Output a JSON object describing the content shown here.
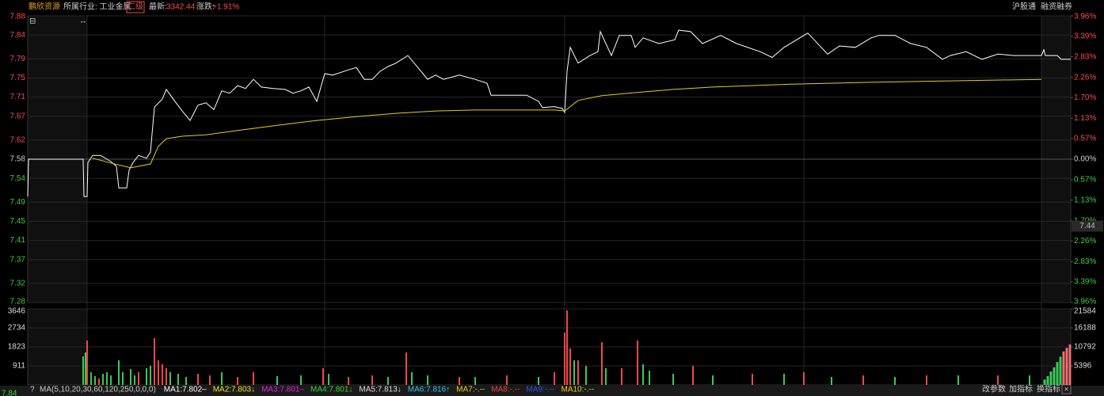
{
  "header": {
    "stock_name": "鹏欣资源",
    "industry": "所属行业: 工业金属",
    "level": "二级",
    "latest_label": "最新:",
    "latest_value": "3342.44",
    "change_label": "涨跌:",
    "change_value": "+1.91%",
    "right_links": [
      "沪股通",
      "融资融券"
    ]
  },
  "chart_data": [
    {
      "type": "line",
      "xlim": [
        0,
        263.4
      ],
      "ylim": [
        7.28,
        7.88
      ],
      "yticks": [
        7.88,
        7.84,
        7.79,
        7.75,
        7.71,
        7.67,
        7.62,
        7.58,
        7.54,
        7.49,
        7.45,
        7.41,
        7.37,
        7.32,
        7.28
      ],
      "y2lim": [
        -3.96,
        3.96
      ],
      "y2ticks": [
        {
          "value": 3.96,
          "label": "3.96%"
        },
        {
          "value": 3.39,
          "label": "3.39%"
        },
        {
          "value": 2.83,
          "label": "2.83%"
        },
        {
          "value": 2.26,
          "label": "2.26%"
        },
        {
          "value": 1.7,
          "label": "1.70%"
        },
        {
          "value": 1.13,
          "label": "1.13%"
        },
        {
          "value": 0.57,
          "label": "0.57%"
        },
        {
          "value": 0,
          "label": "0.00%"
        },
        {
          "value": -0.57,
          "label": "0.57%"
        },
        {
          "value": -1.13,
          "label": "1.13%"
        },
        {
          "value": -1.7,
          "label": "1.70%"
        },
        {
          "value": -2.26,
          "label": "2.26%"
        },
        {
          "value": -2.83,
          "label": "2.83%"
        },
        {
          "value": -3.39,
          "label": "3.39%"
        },
        {
          "value": -3.96,
          "label": "3.96%"
        }
      ],
      "up_color": "#ff4a4a",
      "down_color": "#3ad23a",
      "flat_color": "#cccccc",
      "grid": true,
      "marker_value": 7.44,
      "series": [
        {
          "color": "#ffffff",
          "x": [
            0,
            0.2,
            14,
            14.2,
            15,
            15.2,
            16.4,
            18.4,
            21,
            22.4,
            23,
            25,
            25.6,
            26.6,
            28,
            30,
            31,
            32,
            34,
            35,
            37,
            39,
            41,
            43,
            45,
            47,
            49,
            51,
            53,
            55,
            57,
            59,
            62,
            65,
            67,
            69,
            71,
            73,
            75,
            77,
            81,
            83,
            85,
            87,
            89,
            91,
            93,
            96,
            98,
            101,
            103,
            105,
            109,
            113,
            116,
            117,
            123,
            126,
            129,
            130,
            133,
            135,
            135.6,
            136.2,
            137,
            139,
            142,
            144,
            144.6,
            147.4,
            149.4,
            152.4,
            153.4,
            155.4,
            159.4,
            163.4,
            164.4,
            167.4,
            170.4,
            175,
            179,
            185,
            188,
            191,
            197,
            202,
            205,
            209,
            213,
            215,
            219,
            223,
            227,
            231,
            233,
            237,
            241,
            245,
            249,
            253,
            256,
            256.6,
            257,
            260,
            261,
            263.4
          ],
          "values": [
            7.502,
            7.58,
            7.58,
            7.502,
            7.502,
            7.573,
            7.588,
            7.588,
            7.575,
            7.565,
            7.52,
            7.52,
            7.557,
            7.573,
            7.588,
            7.582,
            7.595,
            7.689,
            7.706,
            7.726,
            7.703,
            7.681,
            7.661,
            7.693,
            7.698,
            7.684,
            7.723,
            7.718,
            7.734,
            7.728,
            7.747,
            7.731,
            7.728,
            7.726,
            7.718,
            7.723,
            7.731,
            7.701,
            7.759,
            7.756,
            7.767,
            7.772,
            7.747,
            7.747,
            7.764,
            7.774,
            7.781,
            7.797,
            7.777,
            7.747,
            7.756,
            7.747,
            7.756,
            7.747,
            7.739,
            7.714,
            7.714,
            7.714,
            7.701,
            7.688,
            7.69,
            7.686,
            7.678,
            7.764,
            7.814,
            7.781,
            7.797,
            7.805,
            7.847,
            7.797,
            7.839,
            7.839,
            7.814,
            7.834,
            7.822,
            7.83,
            7.85,
            7.847,
            7.822,
            7.839,
            7.822,
            7.805,
            7.793,
            7.814,
            7.844,
            7.8,
            7.817,
            7.814,
            7.834,
            7.839,
            7.839,
            7.822,
            7.814,
            7.789,
            7.797,
            7.805,
            7.789,
            7.8,
            7.797,
            7.797,
            7.797,
            7.809,
            7.797,
            7.797,
            7.789,
            7.789
          ]
        },
        {
          "color": "#e0d020",
          "x": [
            16.4,
            21,
            26,
            31,
            33,
            35,
            39,
            45,
            53,
            63,
            73,
            83,
            93,
            103,
            113,
            133,
            135.6,
            139,
            145,
            153,
            163,
            173,
            193,
            213,
            233,
            256
          ],
          "values": [
            7.582,
            7.572,
            7.562,
            7.57,
            7.607,
            7.623,
            7.628,
            7.631,
            7.64,
            7.651,
            7.661,
            7.669,
            7.676,
            7.681,
            7.683,
            7.683,
            7.681,
            7.703,
            7.713,
            7.719,
            7.726,
            7.731,
            7.737,
            7.741,
            7.744,
            7.747
          ]
        }
      ]
    },
    {
      "type": "bar",
      "xlim": [
        0,
        263.4
      ],
      "ylim": [
        0,
        3646
      ],
      "yticks": [
        911,
        1823,
        2734,
        3646
      ],
      "y2lim": [
        0,
        21584
      ],
      "y2ticks": [
        5396,
        10792,
        16188,
        21584
      ],
      "series": [
        {
          "color": "#f04848",
          "x": [
            15,
            18,
            28,
            32,
            33,
            34,
            35,
            43,
            46,
            53,
            57,
            74.6,
            81,
            87,
            95.6,
            109,
            121,
            133,
            135.6,
            136.2,
            137,
            139,
            145,
            150,
            154,
            168,
            183,
            196,
            211,
            227,
            245
          ],
          "values": [
            2128,
            304,
            608,
            2242,
            1178,
            988,
            798,
            532,
            456,
            380,
            608,
            798,
            380,
            456,
            1558,
            380,
            456,
            608,
            2508,
            3572,
            1748,
            1178,
            2052,
            798,
            2128,
            912,
            532,
            608,
            456,
            456,
            456
          ]
        },
        {
          "color": "#3cc85a",
          "x": [
            14,
            14.6,
            16,
            17,
            19,
            20,
            21,
            23,
            24,
            26,
            27,
            30,
            31,
            36,
            38,
            40,
            49,
            63,
            69,
            76,
            91,
            97,
            101,
            113,
            129,
            138,
            141,
            146,
            155.4,
            157,
            163,
            173,
            191,
            203,
            219,
            235,
            253
          ],
          "values": [
            1368,
            1558,
            608,
            418,
            532,
            608,
            456,
            1178,
            608,
            760,
            456,
            798,
            912,
            608,
            532,
            380,
            608,
            418,
            456,
            532,
            380,
            608,
            456,
            380,
            380,
            1178,
            912,
            798,
            988,
            684,
            532,
            456,
            532,
            380,
            380,
            456,
            456
          ]
        },
        {
          "color": "#3cc85a",
          "axis": "y2",
          "x": [
            256.8,
            257.6,
            258.4,
            259.2,
            260,
            260.8
          ],
          "values": [
            1500,
            2500,
            3800,
            5000,
            6500,
            8000
          ]
        },
        {
          "color": "#f07070",
          "axis": "y2",
          "x": [
            261.6,
            262.4,
            263.2
          ],
          "values": [
            9500,
            10500,
            11500
          ]
        }
      ]
    }
  ],
  "footer": {
    "left_price": "7.84",
    "help": "?",
    "ma_title": "MA(5,10,20,30,60,120,250,0,0,0)",
    "ma_items": [
      {
        "text": "MA1:7.802–",
        "color": "#ffffff"
      },
      {
        "text": "MA2:7.803↓",
        "color": "#f0e020"
      },
      {
        "text": "MA3:7.801–",
        "color": "#e020e0"
      },
      {
        "text": "MA4:7.801↓",
        "color": "#30d030"
      },
      {
        "text": "MA5:7.813↓",
        "color": "#dddddd"
      },
      {
        "text": "MA6:7.816↑",
        "color": "#30c0f0"
      },
      {
        "text": "MA7:-.--",
        "color": "#e0d020"
      },
      {
        "text": "MA8:-.--",
        "color": "#f04040"
      },
      {
        "text": "MA9:-.--",
        "color": "#3050f0"
      },
      {
        "text": "MA10:-.--",
        "color": "#e0d020"
      }
    ],
    "buttons": [
      "改参数",
      "加指标",
      "换指标"
    ],
    "close": "×"
  }
}
